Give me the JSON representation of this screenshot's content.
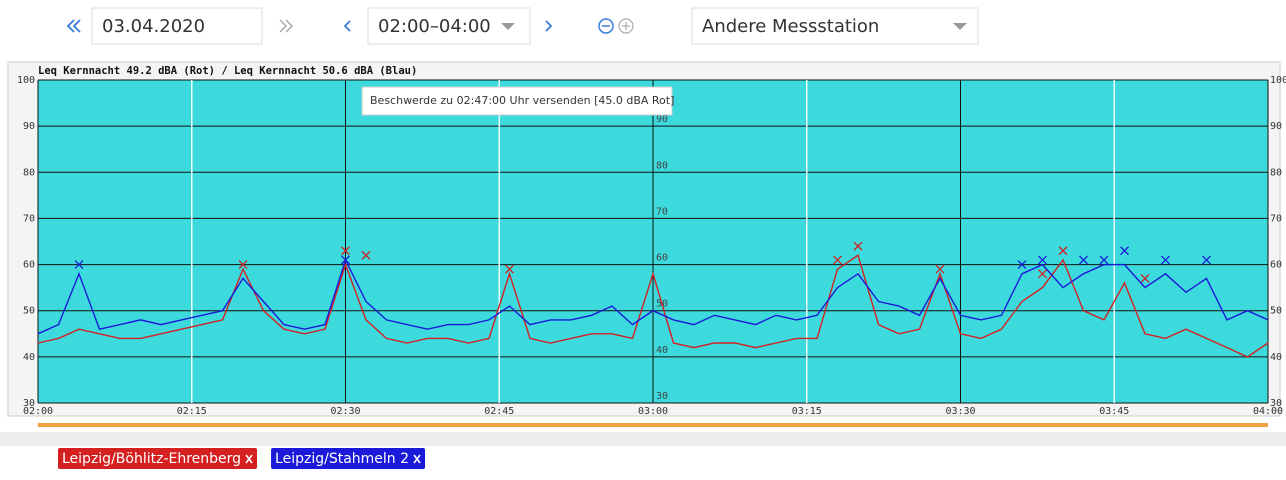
{
  "toolbar": {
    "date": "03.04.2020",
    "time_range": "02:00–04:00",
    "station_select": "Andere Messstation"
  },
  "chart_data": {
    "type": "line",
    "title": "Leq Kernnacht 49.2 dBA (Rot) / Leq Kernnacht 50.6 dBA (Blau)",
    "tooltip": "Beschwerde zu 02:47:00 Uhr versenden [45.0 dBA Rot]",
    "x": [
      "02:00",
      "02:02",
      "02:04",
      "02:06",
      "02:08",
      "02:10",
      "02:12",
      "02:14",
      "02:16",
      "02:18",
      "02:20",
      "02:22",
      "02:24",
      "02:26",
      "02:28",
      "02:30",
      "02:32",
      "02:34",
      "02:36",
      "02:38",
      "02:40",
      "02:42",
      "02:44",
      "02:46",
      "02:48",
      "02:50",
      "02:52",
      "02:54",
      "02:56",
      "02:58",
      "03:00",
      "03:02",
      "03:04",
      "03:06",
      "03:08",
      "03:10",
      "03:12",
      "03:14",
      "03:16",
      "03:18",
      "03:20",
      "03:22",
      "03:24",
      "03:26",
      "03:28",
      "03:30",
      "03:32",
      "03:34",
      "03:36",
      "03:38",
      "03:40",
      "03:42",
      "03:44",
      "03:46",
      "03:48",
      "03:50",
      "03:52",
      "03:54",
      "03:56",
      "03:58",
      "04:00"
    ],
    "xlim": [
      "02:00",
      "04:00"
    ],
    "xticks": [
      "02:00",
      "02:15",
      "02:30",
      "02:45",
      "03:00",
      "03:15",
      "03:30",
      "03:45",
      "04:00"
    ],
    "ylim": [
      30,
      100
    ],
    "yticks": [
      30,
      40,
      50,
      60,
      70,
      80,
      90,
      100
    ],
    "grid": true,
    "background": "#3ddadd",
    "series": [
      {
        "name": "Leipzig/Böhlitz-Ehrenberg",
        "color": "#d42020",
        "values": [
          43,
          44,
          46,
          45,
          44,
          44,
          45,
          46,
          47,
          48,
          59,
          50,
          46,
          45,
          46,
          60,
          48,
          44,
          43,
          44,
          44,
          43,
          44,
          58,
          44,
          43,
          44,
          45,
          45,
          44,
          58,
          43,
          42,
          43,
          43,
          42,
          43,
          44,
          44,
          59,
          62,
          47,
          45,
          46,
          58,
          45,
          44,
          46,
          52,
          55,
          61,
          50,
          48,
          56,
          45,
          44,
          46,
          44,
          42,
          40,
          43
        ],
        "peaks": [
          {
            "x": "02:20",
            "value": 60
          },
          {
            "x": "02:30",
            "value": 63
          },
          {
            "x": "02:32",
            "value": 62
          },
          {
            "x": "02:46",
            "value": 59
          },
          {
            "x": "03:18",
            "value": 61
          },
          {
            "x": "03:20",
            "value": 64
          },
          {
            "x": "03:28",
            "value": 59
          },
          {
            "x": "03:38",
            "value": 58
          },
          {
            "x": "03:40",
            "value": 63
          },
          {
            "x": "03:48",
            "value": 57
          }
        ]
      },
      {
        "name": "Leipzig/Stahmeln 2",
        "color": "#1a1ad8",
        "values": [
          45,
          47,
          58,
          46,
          47,
          48,
          47,
          48,
          49,
          50,
          57,
          52,
          47,
          46,
          47,
          61,
          52,
          48,
          47,
          46,
          47,
          47,
          48,
          51,
          47,
          48,
          48,
          49,
          51,
          47,
          50,
          48,
          47,
          49,
          48,
          47,
          49,
          48,
          49,
          55,
          58,
          52,
          51,
          49,
          57,
          49,
          48,
          49,
          58,
          60,
          55,
          58,
          60,
          60,
          55,
          58,
          54,
          57,
          48,
          50,
          48
        ],
        "peaks": [
          {
            "x": "02:04",
            "value": 60
          },
          {
            "x": "02:30",
            "value": 61
          },
          {
            "x": "03:36",
            "value": 60
          },
          {
            "x": "03:38",
            "value": 61
          },
          {
            "x": "03:42",
            "value": 61
          },
          {
            "x": "03:44",
            "value": 61
          },
          {
            "x": "03:46",
            "value": 63
          },
          {
            "x": "03:50",
            "value": 61
          },
          {
            "x": "03:54",
            "value": 61
          }
        ]
      }
    ]
  }
}
